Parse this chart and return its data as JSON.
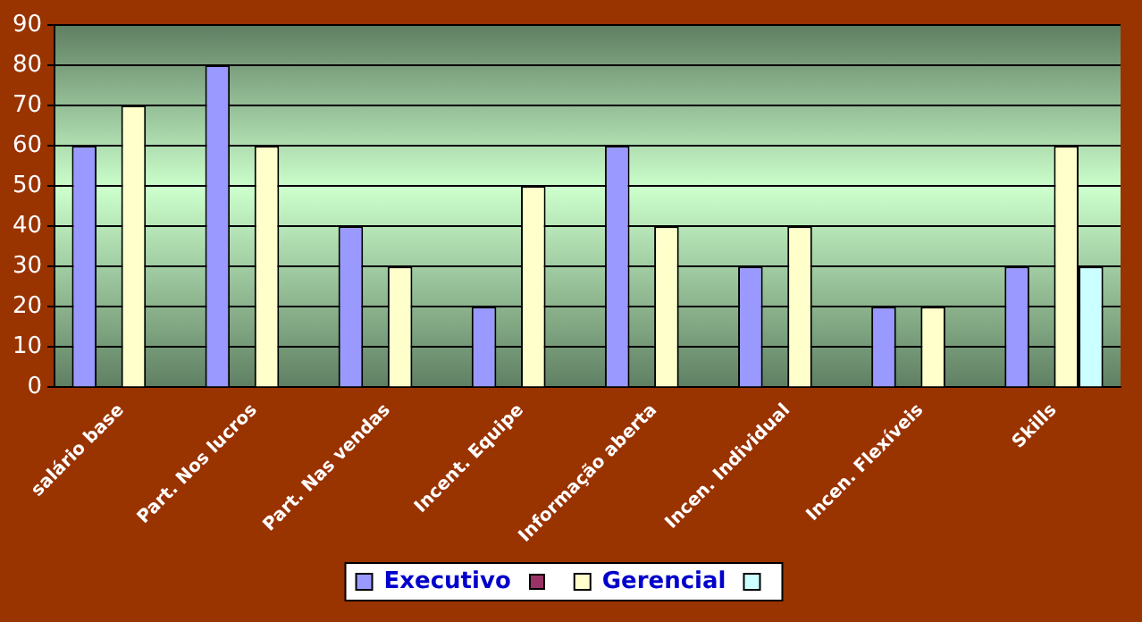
{
  "chart_data": {
    "type": "bar",
    "categories": [
      "salário base",
      "Part. Nos lucros",
      "Part. Nas vendas",
      "Incent. Equipe",
      "Informação aberta",
      "Incen. Individual",
      "Incen. Flexíveis",
      "Skills"
    ],
    "series": [
      {
        "name": "Executivo",
        "color": "#9999ff",
        "values": [
          60,
          80,
          40,
          20,
          60,
          30,
          20,
          30
        ]
      },
      {
        "color": "#993366",
        "values": [
          null,
          null,
          null,
          null,
          null,
          null,
          null,
          null
        ]
      },
      {
        "name": "Gerencial",
        "color": "#ffffcc",
        "values": [
          70,
          60,
          30,
          50,
          40,
          40,
          20,
          60
        ]
      },
      {
        "color": "#ccffff",
        "values": [
          null,
          null,
          null,
          null,
          null,
          null,
          null,
          30
        ]
      }
    ],
    "ylim": [
      0,
      90
    ],
    "yticks": [
      0,
      10,
      20,
      30,
      40,
      50,
      60,
      70,
      80,
      90
    ],
    "grid": "y",
    "legend": "bottom"
  }
}
